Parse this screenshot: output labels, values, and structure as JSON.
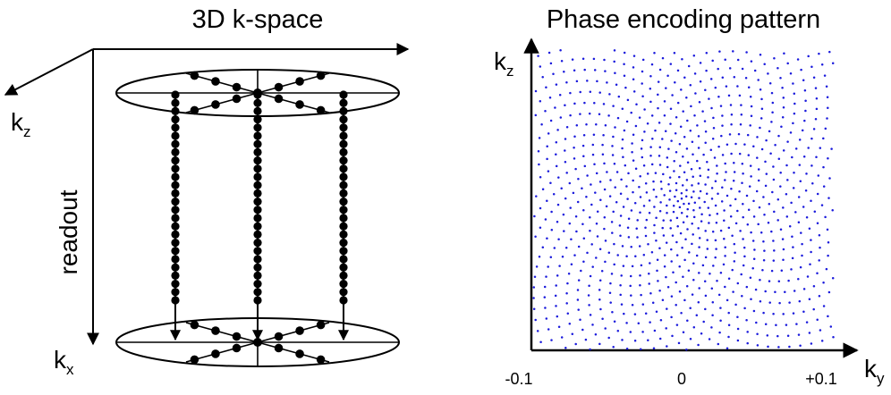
{
  "left_panel": {
    "title": "3D k-space",
    "labels": {
      "kz_main": "k",
      "kz_sub": "z",
      "kx_main": "k",
      "kx_sub": "x",
      "readout": "readout"
    },
    "colors": {
      "ink": "#000000"
    }
  },
  "right_panel": {
    "title": "Phase encoding pattern",
    "labels": {
      "kz_main": "k",
      "kz_sub": "z",
      "ky_main": "k",
      "ky_sub": "y"
    },
    "ticks": [
      "-0.1",
      "0",
      "+0.1"
    ],
    "colors": {
      "dots": "#1a1adc",
      "axes": "#000000"
    }
  },
  "chart_data": {
    "type": "scatter",
    "description_kind": "golden-angle spiral phase-encoding sample pattern, dense at center",
    "x_label": "ky",
    "y_label": "kz",
    "xlim": [
      -0.1,
      0.1
    ],
    "ylim": [
      -0.1,
      0.1
    ],
    "x_ticks": [
      "-0.1",
      "0",
      "+0.1"
    ],
    "point_count": 1400,
    "distribution": "variable-density, density highest at origin",
    "color": "#1a1adc"
  }
}
